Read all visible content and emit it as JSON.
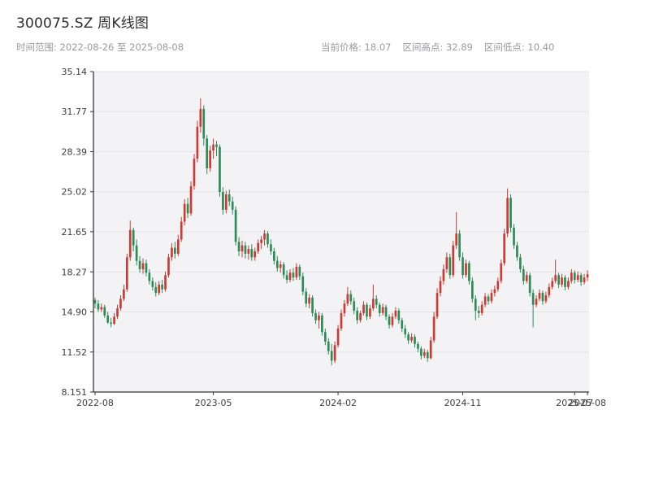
{
  "header": {
    "title": "300075.SZ 周K线图",
    "time_range": "时间范围: 2022-08-26 至 2025-08-08",
    "stat_current": "当前价格: 18.07",
    "stat_high": "区间高点: 32.89",
    "stat_low": "区间低点: 10.40"
  },
  "chart_data": {
    "type": "candlestick",
    "symbol": "300075.SZ",
    "title": "300075.SZ 周K线图",
    "period": "weekly",
    "date_start": "2022-08-26",
    "date_end": "2025-08-08",
    "current_price": 18.07,
    "range_high": 32.89,
    "range_low": 10.4,
    "ylim": [
      8.151,
      35.14
    ],
    "y_tick_labels": [
      "35.14",
      "31.77",
      "28.39",
      "25.02",
      "21.65",
      "18.27",
      "14.90",
      "11.52",
      "8.151"
    ],
    "x_ticks": [
      {
        "label": "2022-08",
        "index": 0
      },
      {
        "label": "2023-05",
        "index": 37
      },
      {
        "label": "2024-02",
        "index": 76
      },
      {
        "label": "2024-11",
        "index": 115
      },
      {
        "label": "2025-07",
        "index": 150
      },
      {
        "label": "2025-08",
        "index": 154
      }
    ],
    "up_color": "#cc3b33",
    "down_color": "#2e8b57",
    "plot_bg": "#f3f3f6",
    "grid_color": "#e3e3e8",
    "axis_color": "#363636",
    "grid": true,
    "legend": false,
    "ohlc": [
      [
        15.9,
        16.1,
        15.2,
        15.6
      ],
      [
        15.6,
        15.9,
        14.9,
        15.1
      ],
      [
        15.1,
        15.6,
        14.9,
        15.3
      ],
      [
        15.3,
        15.5,
        14.4,
        14.6
      ],
      [
        14.6,
        14.9,
        13.9,
        14.0
      ],
      [
        14.0,
        14.4,
        13.6,
        13.9
      ],
      [
        13.9,
        14.8,
        13.8,
        14.5
      ],
      [
        14.5,
        15.5,
        14.3,
        15.2
      ],
      [
        15.2,
        16.3,
        15.0,
        16.0
      ],
      [
        16.0,
        17.2,
        15.8,
        16.8
      ],
      [
        16.8,
        19.8,
        16.6,
        19.5
      ],
      [
        19.5,
        22.6,
        19.2,
        21.8
      ],
      [
        21.8,
        22.0,
        20.0,
        20.5
      ],
      [
        20.5,
        21.0,
        18.8,
        19.2
      ],
      [
        19.2,
        19.6,
        18.2,
        18.5
      ],
      [
        18.5,
        19.4,
        18.1,
        19.0
      ],
      [
        19.0,
        19.3,
        17.9,
        18.2
      ],
      [
        18.2,
        18.5,
        17.2,
        17.5
      ],
      [
        17.5,
        17.8,
        16.7,
        17.0
      ],
      [
        17.0,
        17.4,
        16.2,
        16.5
      ],
      [
        16.5,
        17.5,
        16.3,
        17.2
      ],
      [
        17.2,
        17.6,
        16.5,
        16.8
      ],
      [
        16.8,
        18.3,
        16.6,
        18.0
      ],
      [
        18.0,
        19.8,
        17.8,
        19.5
      ],
      [
        19.5,
        20.7,
        19.2,
        20.3
      ],
      [
        20.3,
        20.8,
        19.4,
        19.8
      ],
      [
        19.8,
        21.4,
        19.6,
        21.0
      ],
      [
        21.0,
        22.9,
        20.8,
        22.5
      ],
      [
        22.5,
        24.4,
        22.2,
        24.0
      ],
      [
        24.0,
        24.5,
        22.8,
        23.2
      ],
      [
        23.2,
        25.9,
        23.0,
        25.5
      ],
      [
        25.5,
        28.2,
        25.2,
        27.8
      ],
      [
        27.8,
        31.0,
        27.5,
        30.5
      ],
      [
        30.5,
        32.89,
        30.0,
        32.0
      ],
      [
        32.0,
        32.3,
        28.9,
        29.5
      ],
      [
        29.5,
        29.8,
        26.5,
        27.0
      ],
      [
        27.0,
        28.9,
        26.7,
        28.5
      ],
      [
        28.5,
        29.5,
        27.8,
        29.0
      ],
      [
        29.0,
        29.3,
        28.0,
        28.8
      ],
      [
        28.8,
        29.0,
        24.6,
        25.0
      ],
      [
        25.0,
        25.4,
        23.1,
        23.5
      ],
      [
        23.5,
        25.1,
        23.2,
        24.8
      ],
      [
        24.8,
        25.2,
        23.8,
        24.2
      ],
      [
        24.2,
        24.6,
        23.1,
        23.5
      ],
      [
        23.5,
        23.8,
        20.5,
        20.8
      ],
      [
        20.8,
        21.2,
        19.6,
        20.0
      ],
      [
        20.0,
        20.9,
        19.5,
        20.5
      ],
      [
        20.5,
        20.8,
        19.4,
        19.8
      ],
      [
        19.8,
        20.5,
        19.3,
        20.2
      ],
      [
        20.2,
        20.6,
        19.2,
        19.5
      ],
      [
        19.5,
        20.3,
        19.2,
        20.0
      ],
      [
        20.0,
        21.0,
        19.8,
        20.7
      ],
      [
        20.7,
        21.3,
        20.2,
        21.0
      ],
      [
        21.0,
        21.8,
        20.5,
        21.5
      ],
      [
        21.5,
        21.7,
        20.3,
        20.6
      ],
      [
        20.6,
        21.0,
        19.7,
        20.0
      ],
      [
        20.0,
        20.3,
        18.9,
        19.2
      ],
      [
        19.2,
        19.6,
        18.3,
        18.6
      ],
      [
        18.6,
        19.2,
        18.2,
        18.9
      ],
      [
        18.9,
        19.1,
        17.7,
        18.0
      ],
      [
        18.0,
        18.4,
        17.3,
        17.6
      ],
      [
        17.6,
        18.5,
        17.4,
        18.2
      ],
      [
        18.2,
        18.6,
        17.5,
        17.8
      ],
      [
        17.8,
        19.0,
        17.6,
        18.7
      ],
      [
        18.7,
        18.9,
        17.6,
        17.9
      ],
      [
        17.9,
        18.2,
        16.3,
        16.6
      ],
      [
        16.6,
        16.9,
        15.3,
        15.6
      ],
      [
        15.6,
        16.4,
        15.2,
        16.1
      ],
      [
        16.1,
        16.3,
        14.5,
        14.8
      ],
      [
        14.8,
        15.1,
        13.9,
        14.2
      ],
      [
        14.2,
        14.9,
        13.5,
        14.6
      ],
      [
        14.6,
        14.8,
        12.9,
        13.2
      ],
      [
        13.2,
        13.5,
        12.1,
        12.4
      ],
      [
        12.4,
        12.7,
        11.3,
        11.6
      ],
      [
        11.6,
        12.2,
        10.4,
        10.8
      ],
      [
        10.8,
        12.4,
        10.6,
        12.1
      ],
      [
        12.1,
        13.8,
        11.9,
        13.5
      ],
      [
        13.5,
        15.1,
        13.3,
        14.8
      ],
      [
        14.8,
        15.9,
        14.5,
        15.6
      ],
      [
        15.6,
        17.0,
        15.4,
        16.4
      ],
      [
        16.4,
        16.7,
        15.5,
        15.8
      ],
      [
        15.8,
        16.1,
        14.7,
        15.0
      ],
      [
        15.0,
        15.3,
        13.9,
        14.2
      ],
      [
        14.2,
        15.0,
        14.0,
        14.8
      ],
      [
        14.8,
        15.8,
        14.6,
        15.5
      ],
      [
        15.5,
        15.7,
        14.2,
        14.5
      ],
      [
        14.5,
        15.5,
        14.3,
        15.2
      ],
      [
        15.2,
        17.2,
        15.0,
        16.0
      ],
      [
        16.0,
        16.3,
        15.2,
        15.5
      ],
      [
        15.5,
        15.7,
        14.5,
        14.8
      ],
      [
        14.8,
        15.6,
        14.6,
        15.3
      ],
      [
        15.3,
        15.5,
        14.2,
        14.5
      ],
      [
        14.5,
        14.7,
        13.5,
        13.8
      ],
      [
        13.8,
        14.8,
        13.6,
        14.5
      ],
      [
        14.5,
        15.3,
        14.3,
        15.0
      ],
      [
        15.0,
        15.2,
        13.9,
        14.2
      ],
      [
        14.2,
        14.4,
        13.2,
        13.5
      ],
      [
        13.5,
        13.8,
        12.7,
        13.0
      ],
      [
        13.0,
        13.2,
        12.2,
        12.5
      ],
      [
        12.5,
        13.1,
        12.3,
        12.8
      ],
      [
        12.8,
        13.0,
        11.9,
        12.2
      ],
      [
        12.2,
        12.4,
        11.5,
        11.8
      ],
      [
        11.8,
        12.0,
        10.9,
        11.2
      ],
      [
        11.2,
        11.8,
        11.0,
        11.5
      ],
      [
        11.5,
        11.7,
        10.7,
        11.0
      ],
      [
        11.0,
        12.8,
        10.9,
        12.5
      ],
      [
        12.5,
        14.9,
        12.3,
        14.5
      ],
      [
        14.5,
        16.9,
        14.3,
        16.5
      ],
      [
        16.5,
        17.9,
        16.2,
        17.5
      ],
      [
        17.5,
        18.9,
        17.2,
        18.5
      ],
      [
        18.5,
        19.9,
        18.2,
        19.5
      ],
      [
        19.5,
        19.8,
        17.7,
        18.0
      ],
      [
        18.0,
        20.9,
        17.8,
        20.5
      ],
      [
        20.5,
        23.3,
        20.2,
        21.5
      ],
      [
        21.5,
        21.8,
        19.2,
        19.5
      ],
      [
        19.5,
        19.9,
        17.7,
        18.0
      ],
      [
        18.0,
        19.3,
        17.8,
        19.0
      ],
      [
        19.0,
        19.2,
        17.2,
        17.5
      ],
      [
        17.5,
        17.8,
        15.7,
        16.0
      ],
      [
        16.0,
        16.3,
        14.2,
        15.0
      ],
      [
        15.0,
        15.4,
        14.4,
        14.8
      ],
      [
        14.8,
        15.8,
        14.6,
        15.5
      ],
      [
        15.5,
        16.5,
        15.3,
        16.2
      ],
      [
        16.2,
        16.4,
        15.5,
        15.8
      ],
      [
        15.8,
        16.8,
        15.6,
        16.5
      ],
      [
        16.5,
        17.1,
        16.2,
        16.8
      ],
      [
        16.8,
        17.8,
        16.6,
        17.5
      ],
      [
        17.5,
        19.3,
        17.3,
        19.0
      ],
      [
        19.0,
        21.9,
        18.8,
        21.5
      ],
      [
        21.5,
        25.3,
        21.2,
        24.5
      ],
      [
        24.5,
        24.8,
        21.6,
        22.0
      ],
      [
        22.0,
        22.3,
        20.2,
        20.5
      ],
      [
        20.5,
        20.8,
        19.2,
        19.5
      ],
      [
        19.5,
        19.8,
        18.2,
        18.5
      ],
      [
        18.5,
        18.8,
        17.2,
        17.5
      ],
      [
        17.5,
        18.3,
        17.3,
        18.0
      ],
      [
        18.0,
        18.2,
        16.2,
        16.5
      ],
      [
        16.5,
        16.8,
        13.6,
        15.5
      ],
      [
        15.5,
        16.3,
        15.3,
        16.0
      ],
      [
        16.0,
        16.8,
        15.8,
        16.5
      ],
      [
        16.5,
        16.7,
        15.5,
        15.8
      ],
      [
        15.8,
        16.6,
        15.6,
        16.3
      ],
      [
        16.3,
        17.3,
        16.1,
        17.0
      ],
      [
        17.0,
        17.8,
        16.8,
        17.5
      ],
      [
        17.5,
        19.3,
        17.3,
        18.0
      ],
      [
        18.0,
        18.2,
        16.9,
        17.2
      ],
      [
        17.2,
        18.1,
        17.0,
        17.8
      ],
      [
        17.8,
        18.0,
        16.7,
        17.0
      ],
      [
        17.0,
        17.8,
        16.8,
        17.5
      ],
      [
        17.5,
        18.5,
        17.3,
        18.2
      ],
      [
        18.2,
        18.4,
        17.3,
        17.6
      ],
      [
        17.6,
        18.3,
        17.4,
        18.0
      ],
      [
        18.0,
        18.2,
        17.1,
        17.4
      ],
      [
        17.4,
        18.1,
        17.2,
        17.8
      ],
      [
        17.8,
        18.4,
        17.5,
        18.07
      ]
    ]
  }
}
